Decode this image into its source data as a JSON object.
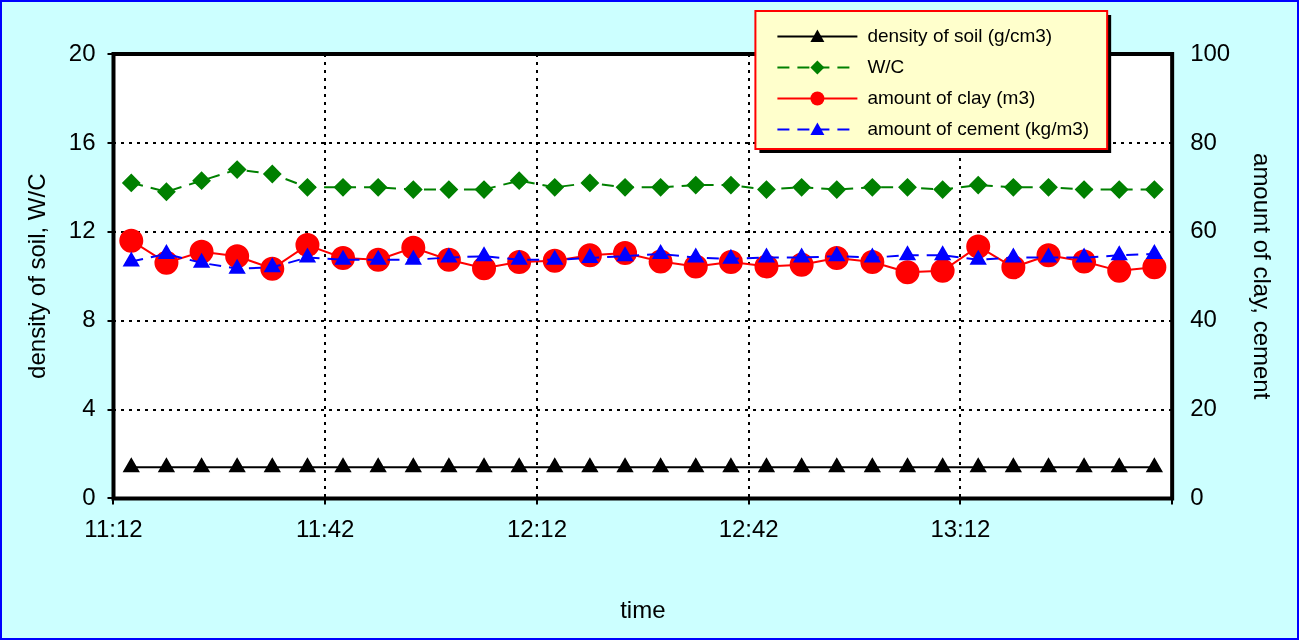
{
  "chart_data": {
    "type": "line",
    "xlabel": "time",
    "ylabel": "density of soil, W/C",
    "y2label": "amount of clay, cement",
    "x": [
      11.242,
      11.325,
      11.408,
      11.492,
      11.575,
      11.658,
      11.742,
      11.825,
      11.908,
      11.992,
      12.075,
      12.158,
      12.242,
      12.325,
      12.408,
      12.492,
      12.575,
      12.658,
      12.742,
      12.825,
      12.908,
      12.992,
      13.075,
      13.158,
      13.242,
      13.325,
      13.408,
      13.492,
      13.575,
      13.658
    ],
    "xlim": [
      11.2,
      13.7
    ],
    "xticks": [
      {
        "value": 11.2,
        "label": "11:12"
      },
      {
        "value": 11.7,
        "label": "11:42"
      },
      {
        "value": 12.2,
        "label": "12:12"
      },
      {
        "value": 12.7,
        "label": "12:42"
      },
      {
        "value": 13.2,
        "label": "13:12"
      },
      {
        "value": 13.7,
        "label": null
      }
    ],
    "ylim": [
      0,
      20
    ],
    "yticks": [
      0,
      4,
      8,
      12,
      16,
      20
    ],
    "y2lim": [
      0,
      100
    ],
    "y2ticks": [
      0,
      20,
      40,
      60,
      80,
      100
    ],
    "grid": true,
    "legend": "top right",
    "series": [
      {
        "name": "density of soil (g/cm3)",
        "color": "#000000",
        "marker": "triangle",
        "line_style": "solid",
        "values": [
          1.4,
          1.4,
          1.4,
          1.4,
          1.4,
          1.4,
          1.4,
          1.4,
          1.4,
          1.4,
          1.4,
          1.4,
          1.4,
          1.4,
          1.4,
          1.4,
          1.4,
          1.4,
          1.4,
          1.4,
          1.4,
          1.4,
          1.4,
          1.4,
          1.4,
          1.4,
          1.4,
          1.4,
          1.4,
          1.4
        ]
      },
      {
        "name": "W/C",
        "color": "#008000",
        "marker": "diamond",
        "line_style": "dashed",
        "values": [
          14.2,
          13.8,
          14.3,
          14.8,
          14.6,
          14.0,
          14.0,
          14.0,
          13.9,
          13.9,
          13.9,
          14.3,
          14.0,
          14.2,
          14.0,
          14.0,
          14.1,
          14.1,
          13.9,
          14.0,
          13.9,
          14.0,
          14.0,
          13.9,
          14.1,
          14.0,
          14.0,
          13.9,
          13.9,
          13.9
        ]
      },
      {
        "name": "amount of clay (m3)",
        "color": "#ff0000",
        "marker": "circle",
        "line_style": "solid",
        "axis": "y2",
        "values": [
          58.0,
          53.0,
          55.5,
          54.5,
          51.7,
          57.0,
          54.1,
          53.7,
          56.4,
          53.7,
          51.8,
          53.2,
          53.5,
          54.7,
          55.2,
          53.3,
          52.2,
          53.2,
          52.2,
          52.6,
          54.1,
          53.2,
          50.9,
          51.2,
          56.7,
          52.0,
          54.7,
          53.3,
          51.2,
          52.0
        ]
      },
      {
        "name": "amount of cement (kg/m3)",
        "color": "#0000ff",
        "marker": "triangle",
        "line_style": "dashed",
        "axis": "y2",
        "values": [
          53.3,
          55.0,
          53.0,
          51.7,
          52.0,
          54.2,
          53.7,
          53.7,
          53.7,
          54.2,
          54.5,
          53.7,
          53.7,
          54.1,
          54.5,
          55.0,
          54.2,
          53.9,
          54.2,
          54.2,
          54.5,
          54.2,
          54.7,
          54.7,
          53.7,
          54.2,
          54.2,
          54.2,
          54.7,
          55.0
        ]
      }
    ]
  }
}
